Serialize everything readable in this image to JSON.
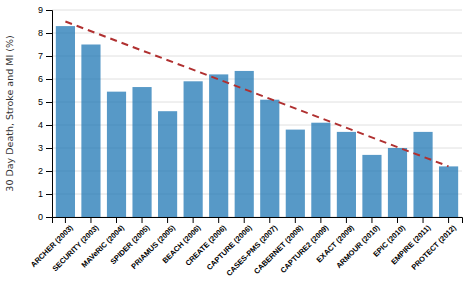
{
  "chart_data": {
    "type": "bar",
    "ylabel": "30 Day Death, Stroke and MI (%)",
    "categories": [
      "ARCHER (2003)",
      "SECURITY (2003)",
      "MAVeRIC (2004)",
      "SPIDER (2005)",
      "PRIAMUS (2005)",
      "BEACH (2006)",
      "CREATE (2006)",
      "CAPTURE (2006)",
      "CASES-PMS (2007)",
      "CABERNET (2008)",
      "CAPTURE2 (2009)",
      "EXACT (2009)",
      "ARMOUR (2010)",
      "EPIC (2010)",
      "EMPIRE (2011)",
      "PROTECT (2012)"
    ],
    "values": [
      8.3,
      7.5,
      5.45,
      5.65,
      4.6,
      5.9,
      6.2,
      6.35,
      5.1,
      3.8,
      4.1,
      3.7,
      2.7,
      3.0,
      3.7,
      2.2
    ],
    "trend_line": {
      "start": 8.5,
      "end": 2.2,
      "color": "#b03030",
      "line_style": "dashed"
    },
    "ylim": [
      0,
      9
    ],
    "yticks": [
      0,
      1,
      2,
      3,
      4,
      5,
      6,
      7,
      8,
      9
    ],
    "grid": true
  }
}
